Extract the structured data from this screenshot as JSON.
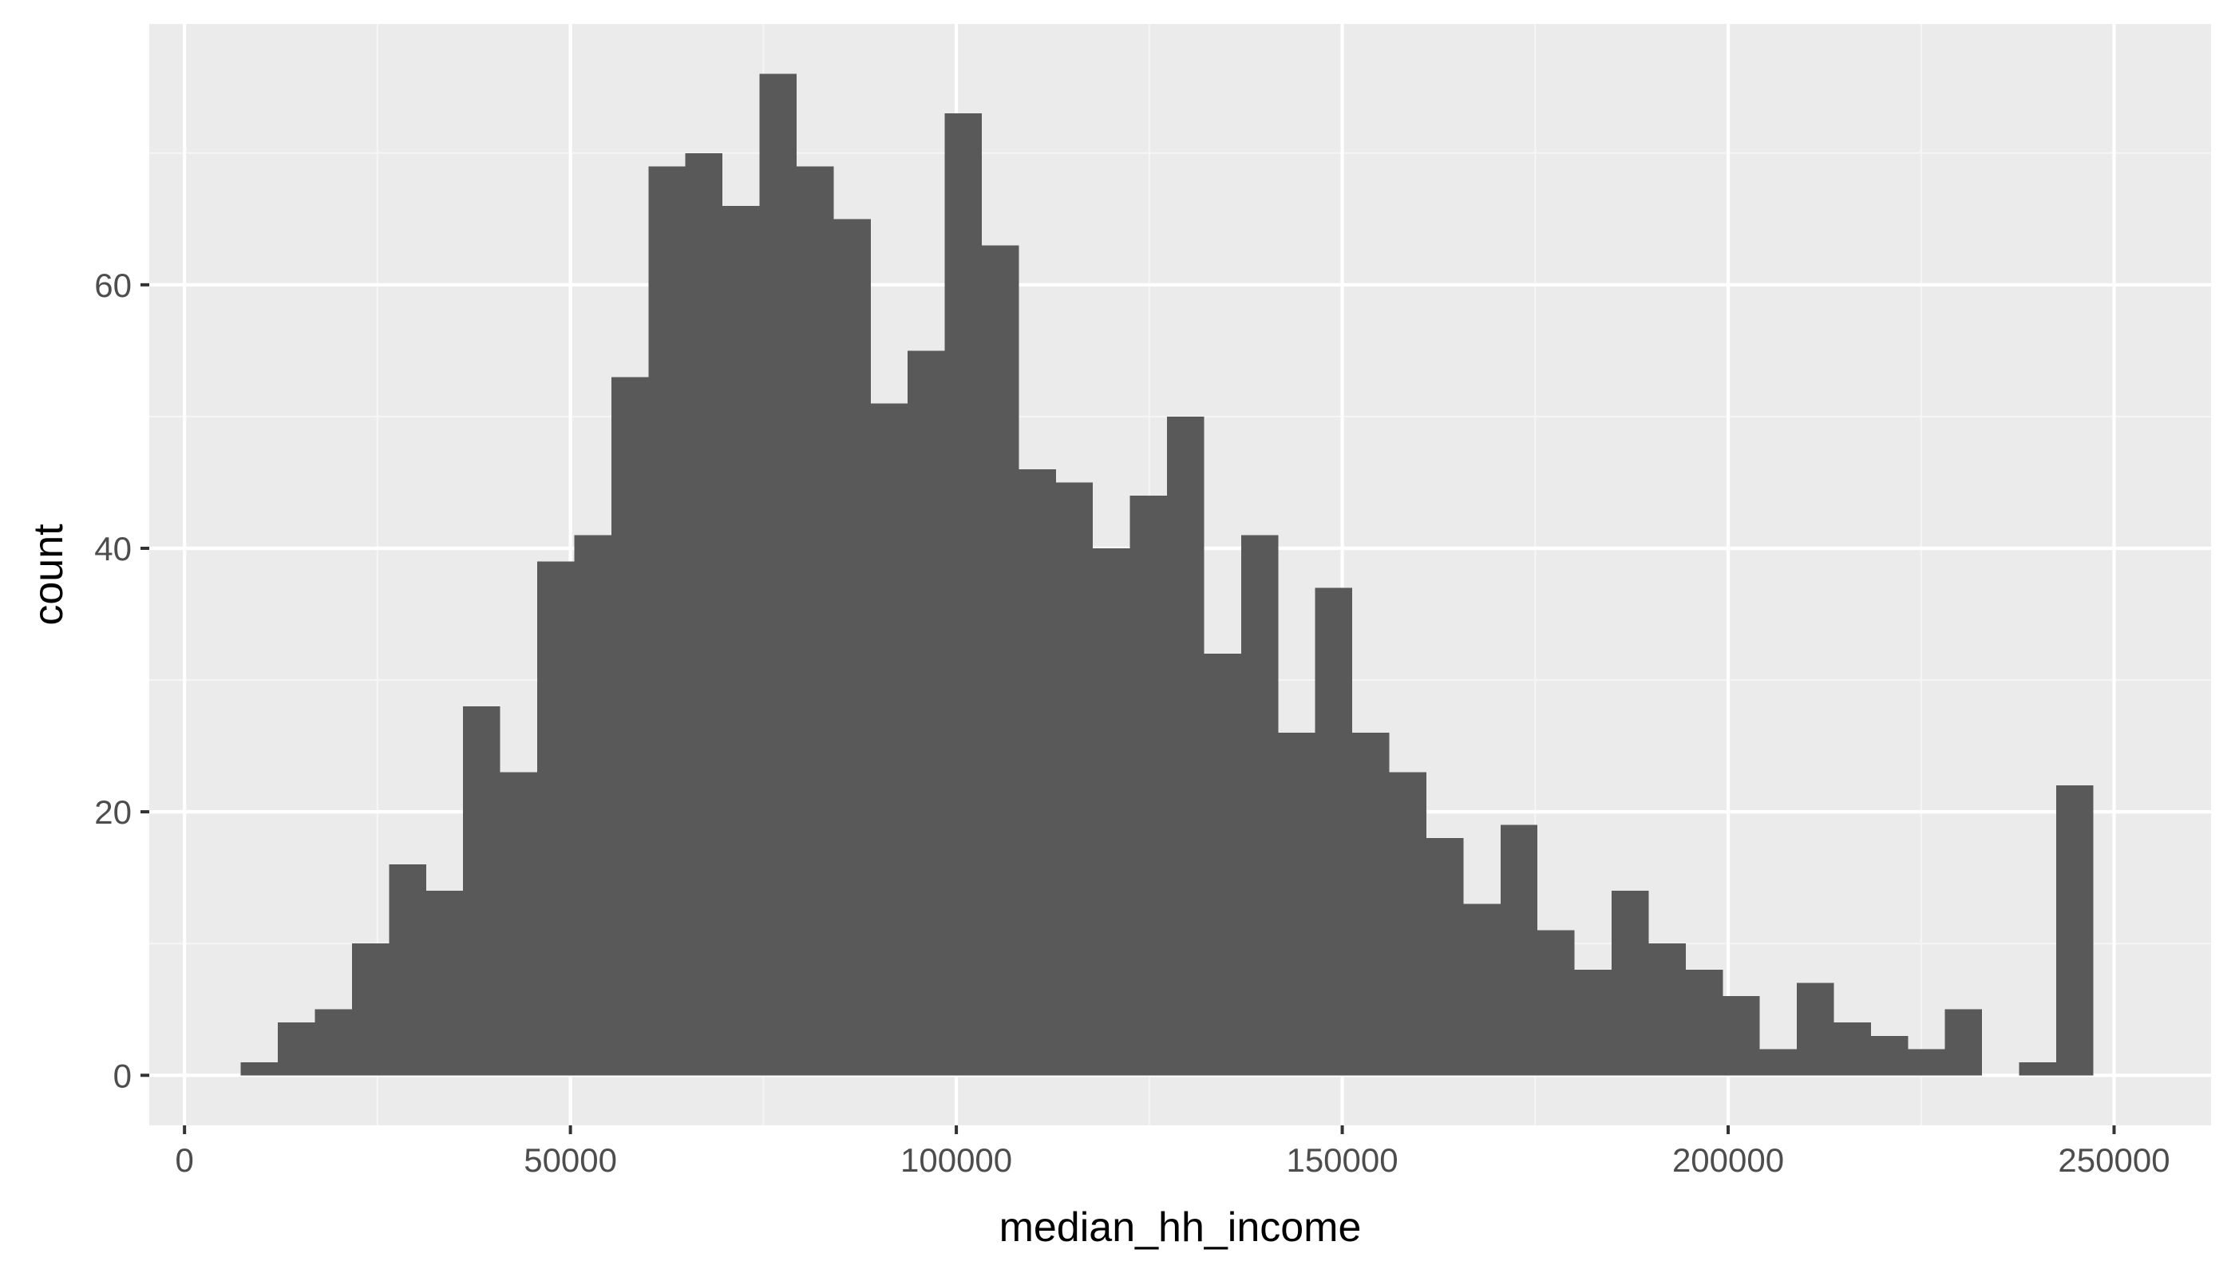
{
  "chart_data": {
    "type": "bar",
    "subtype": "histogram",
    "xlabel": "median_hh_income",
    "ylabel": "count",
    "bin_width": 4800,
    "bins": [
      {
        "start": 7300,
        "end": 12100,
        "count": 1
      },
      {
        "start": 12100,
        "end": 16900,
        "count": 4
      },
      {
        "start": 16900,
        "end": 21700,
        "count": 5
      },
      {
        "start": 21700,
        "end": 26500,
        "count": 10
      },
      {
        "start": 26500,
        "end": 31300,
        "count": 16
      },
      {
        "start": 31300,
        "end": 36100,
        "count": 14
      },
      {
        "start": 36100,
        "end": 40900,
        "count": 28
      },
      {
        "start": 40900,
        "end": 45700,
        "count": 23
      },
      {
        "start": 45700,
        "end": 50500,
        "count": 39
      },
      {
        "start": 50500,
        "end": 55300,
        "count": 41
      },
      {
        "start": 55300,
        "end": 60100,
        "count": 53
      },
      {
        "start": 60100,
        "end": 64900,
        "count": 69
      },
      {
        "start": 64900,
        "end": 69700,
        "count": 70
      },
      {
        "start": 69700,
        "end": 74500,
        "count": 66
      },
      {
        "start": 74500,
        "end": 79300,
        "count": 76
      },
      {
        "start": 79300,
        "end": 84100,
        "count": 69
      },
      {
        "start": 84100,
        "end": 88900,
        "count": 65
      },
      {
        "start": 88900,
        "end": 93700,
        "count": 51
      },
      {
        "start": 93700,
        "end": 98500,
        "count": 55
      },
      {
        "start": 98500,
        "end": 103300,
        "count": 73
      },
      {
        "start": 103300,
        "end": 108100,
        "count": 63
      },
      {
        "start": 108100,
        "end": 112900,
        "count": 46
      },
      {
        "start": 112900,
        "end": 117700,
        "count": 45
      },
      {
        "start": 117700,
        "end": 122500,
        "count": 40
      },
      {
        "start": 122500,
        "end": 127300,
        "count": 44
      },
      {
        "start": 127300,
        "end": 132100,
        "count": 50
      },
      {
        "start": 132100,
        "end": 136900,
        "count": 32
      },
      {
        "start": 136900,
        "end": 141700,
        "count": 41
      },
      {
        "start": 141700,
        "end": 146500,
        "count": 26
      },
      {
        "start": 146500,
        "end": 151300,
        "count": 37
      },
      {
        "start": 151300,
        "end": 156100,
        "count": 26
      },
      {
        "start": 156100,
        "end": 160900,
        "count": 23
      },
      {
        "start": 160900,
        "end": 165700,
        "count": 18
      },
      {
        "start": 165700,
        "end": 170500,
        "count": 13
      },
      {
        "start": 170500,
        "end": 175300,
        "count": 19
      },
      {
        "start": 175300,
        "end": 180100,
        "count": 11
      },
      {
        "start": 180100,
        "end": 184900,
        "count": 8
      },
      {
        "start": 184900,
        "end": 189700,
        "count": 14
      },
      {
        "start": 189700,
        "end": 194500,
        "count": 10
      },
      {
        "start": 194500,
        "end": 199300,
        "count": 8
      },
      {
        "start": 199300,
        "end": 204100,
        "count": 6
      },
      {
        "start": 204100,
        "end": 208900,
        "count": 2
      },
      {
        "start": 208900,
        "end": 213700,
        "count": 7
      },
      {
        "start": 213700,
        "end": 218500,
        "count": 4
      },
      {
        "start": 218500,
        "end": 223300,
        "count": 3
      },
      {
        "start": 223300,
        "end": 228100,
        "count": 2
      },
      {
        "start": 228100,
        "end": 232900,
        "count": 5
      },
      {
        "start": 232900,
        "end": 237700,
        "count": 0
      },
      {
        "start": 237700,
        "end": 242500,
        "count": 1
      },
      {
        "start": 242500,
        "end": 247300,
        "count": 22
      }
    ],
    "xlim": [
      -4566,
      262566
    ],
    "ylim": [
      -3.8,
      79.8
    ],
    "x_ticks": [
      {
        "value": 0,
        "label": "0"
      },
      {
        "value": 50000,
        "label": "50000"
      },
      {
        "value": 100000,
        "label": "100000"
      },
      {
        "value": 150000,
        "label": "150000"
      },
      {
        "value": 200000,
        "label": "200000"
      },
      {
        "value": 250000,
        "label": "250000"
      }
    ],
    "y_ticks": [
      {
        "value": 0,
        "label": "0"
      },
      {
        "value": 20,
        "label": "20"
      },
      {
        "value": 40,
        "label": "40"
      },
      {
        "value": 60,
        "label": "60"
      }
    ],
    "x_minor_grid": [
      25000,
      75000,
      125000,
      175000,
      225000
    ],
    "y_minor_grid": [
      10,
      30,
      50,
      70
    ],
    "grid": true,
    "legend": "none",
    "colors": {
      "panel_background": "#ebebeb",
      "grid_major": "#ffffff",
      "grid_minor": "#f5f5f5",
      "bar_fill": "#595959",
      "tick_mark": "#333333",
      "tick_label": "#4d4d4d",
      "axis_title": "#000000"
    }
  }
}
